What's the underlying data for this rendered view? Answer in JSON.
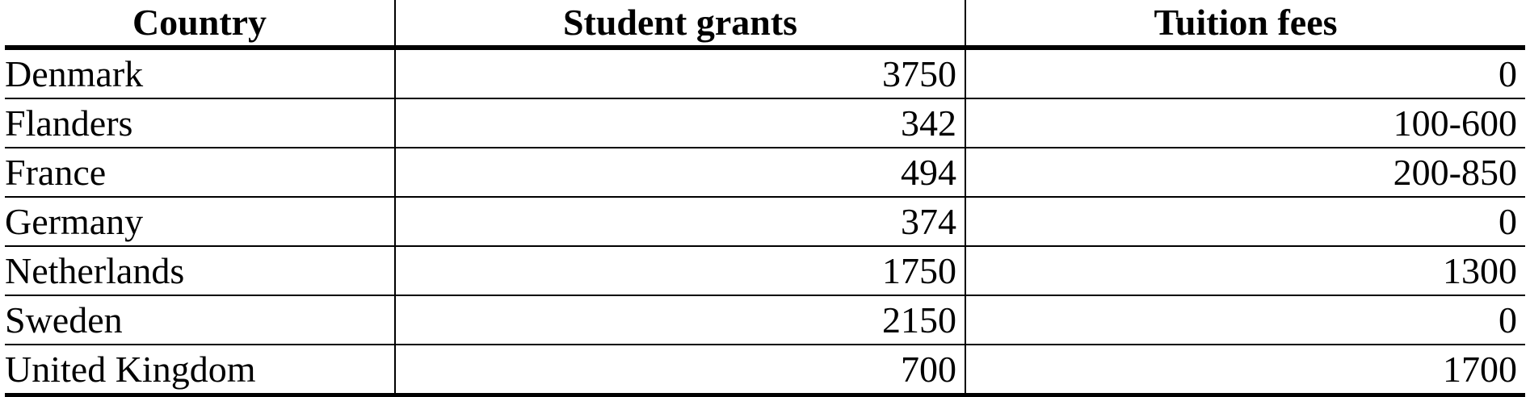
{
  "chart_data": {
    "type": "table",
    "columns": [
      "Country",
      "Student grants",
      "Tuition fees"
    ],
    "rows": [
      [
        "Denmark",
        "3750",
        "0"
      ],
      [
        "Flanders",
        "342",
        "100-600"
      ],
      [
        "France",
        "494",
        "200-850"
      ],
      [
        "Germany",
        "374",
        "0"
      ],
      [
        "Netherlands",
        "1750",
        "1300"
      ],
      [
        "Sweden",
        "2150",
        "0"
      ],
      [
        "United Kingdom",
        "700",
        "1700"
      ]
    ]
  }
}
